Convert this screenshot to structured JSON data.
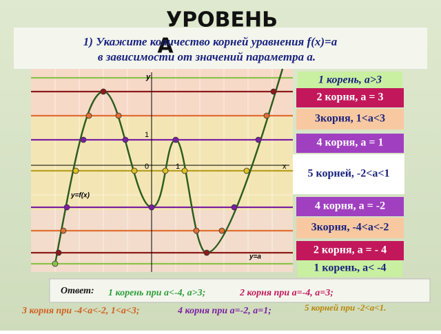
{
  "title": "УРОВЕНЬ А",
  "question": {
    "line1": "1) Укажите количество корней уравнения f(x)=a",
    "line2": "в зависимости от значений параметра a."
  },
  "graph": {
    "y_axis": "y",
    "x_axis": "x",
    "origin": "0",
    "x_one": "1",
    "y_one": "1",
    "curve_label": "y=f(x)",
    "line_label": "y=a"
  },
  "cases": [
    "1 корень, a>3",
    "2 корня, a = 3",
    "3корня, 1<a<3",
    "4 корня, a = 1",
    "5 корней, -2<a<1",
    "4 корня, a = -2",
    "3корня, -4<a<-2",
    "2 корня, a = - 4",
    "1 корень, a< -4"
  ],
  "answer": {
    "label": "Ответ:",
    "parts": [
      "1 корень при a<-4, a>3;",
      "2 корня при a=-4,  a=3;",
      "3 корня при -4<a<-2, 1<a<3;",
      "4 корня при a=-2, a=1;",
      "5 корней при -2<a<1."
    ]
  }
}
